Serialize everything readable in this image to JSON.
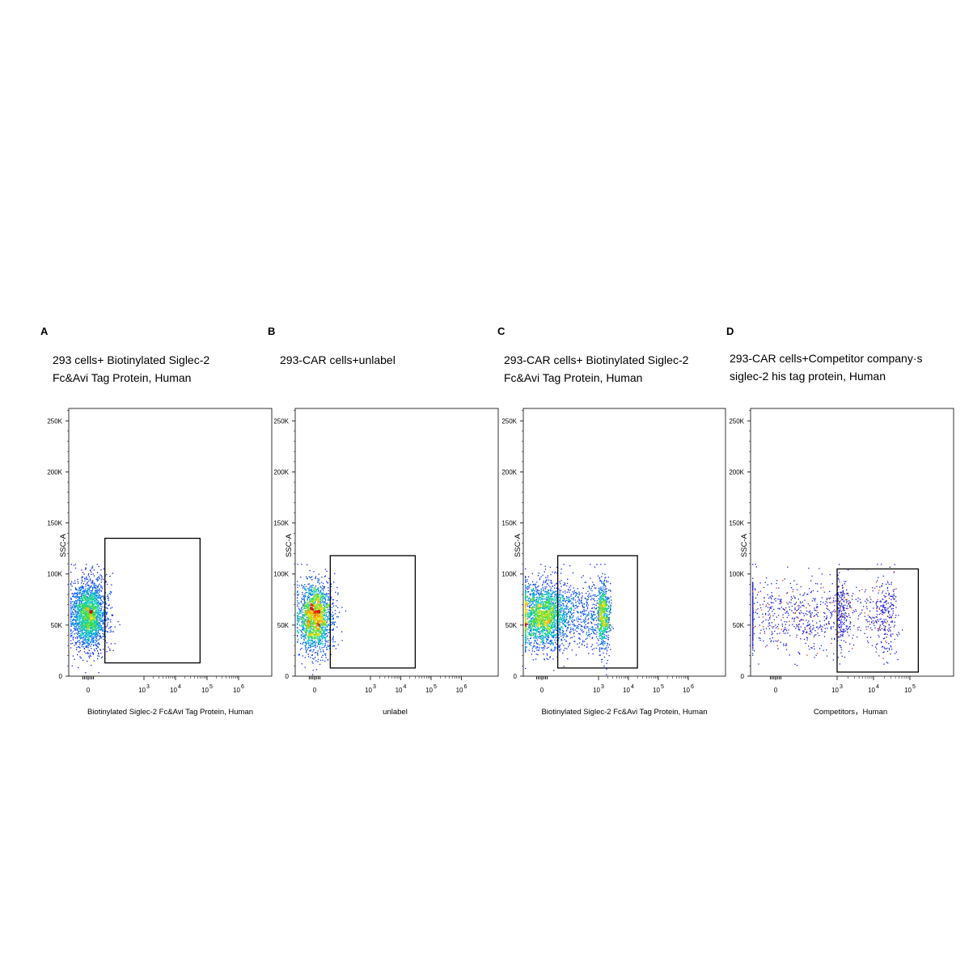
{
  "chart_data": [
    {
      "type": "scatter",
      "panel": "A",
      "title_lines": [
        "293 cells+ Biotinylated Siglec-2",
        "Fc&Avi Tag Protein, Human"
      ],
      "xlabel": "Biotinylated Siglec-2 Fc&Avi Tag Protein, Human",
      "ylabel": "SSC-A",
      "xticks": [
        {
          "label": "0",
          "exp": ""
        },
        {
          "label": "10",
          "exp": "3"
        },
        {
          "label": "10",
          "exp": "4"
        },
        {
          "label": "10",
          "exp": "5"
        },
        {
          "label": "10",
          "exp": "6"
        }
      ],
      "yticks": [
        "0",
        "50K",
        "100K",
        "150K",
        "200K",
        "250K"
      ],
      "ylim": [
        0,
        262144
      ],
      "x_scale": "biexponential",
      "gate": {
        "x": [
          300,
          60000
        ],
        "y": [
          13000,
          135000
        ]
      },
      "populations": [
        {
          "x_center": 0,
          "x_spread": 160,
          "y_center": 60000,
          "y_spread": 17000,
          "count": 2200
        }
      ]
    },
    {
      "type": "scatter",
      "panel": "B",
      "title_lines": [
        "293-CAR cells+unlabel"
      ],
      "xlabel": "unlabel",
      "ylabel": "SSC-A",
      "xticks": [
        {
          "label": "0",
          "exp": ""
        },
        {
          "label": "10",
          "exp": "3"
        },
        {
          "label": "10",
          "exp": "4"
        },
        {
          "label": "10",
          "exp": "5"
        },
        {
          "label": "10",
          "exp": "6"
        }
      ],
      "yticks": [
        "0",
        "50K",
        "100K",
        "150K",
        "200K",
        "250K"
      ],
      "ylim": [
        0,
        262144
      ],
      "x_scale": "biexponential",
      "gate": {
        "x": [
          280,
          30000
        ],
        "y": [
          8000,
          118000
        ]
      },
      "populations": [
        {
          "x_center": 0,
          "x_spread": 150,
          "y_center": 58000,
          "y_spread": 17000,
          "count": 1900
        }
      ]
    },
    {
      "type": "scatter",
      "panel": "C",
      "title_lines": [
        "293-CAR cells+ Biotinylated Siglec-2",
        "Fc&Avi Tag Protein, Human"
      ],
      "xlabel": "Biotinylated Siglec-2 Fc&Avi Tag Protein, Human",
      "ylabel": "SSC-A",
      "xticks": [
        {
          "label": "0",
          "exp": ""
        },
        {
          "label": "10",
          "exp": "3"
        },
        {
          "label": "10",
          "exp": "4"
        },
        {
          "label": "10",
          "exp": "5"
        },
        {
          "label": "10",
          "exp": "6"
        }
      ],
      "yticks": [
        "0",
        "50K",
        "100K",
        "150K",
        "200K",
        "250K"
      ],
      "ylim": [
        0,
        262144
      ],
      "x_scale": "biexponential",
      "gate": {
        "x": [
          280,
          20000
        ],
        "y": [
          8000,
          118000
        ]
      },
      "populations": [
        {
          "x_center": 0,
          "x_spread": 220,
          "y_center": 60000,
          "y_spread": 16000,
          "count": 2000
        },
        {
          "x_center": 1000,
          "x_spread": 600,
          "y_center": 60000,
          "y_spread": 17000,
          "count": 1300
        }
      ]
    },
    {
      "type": "scatter",
      "panel": "D",
      "title_lines": [
        "293-CAR cells+Competitor company·s",
        "siglec-2 his tag protein, Human"
      ],
      "xlabel": "Competitors，Human",
      "ylabel": "SSC-A",
      "xticks": [
        {
          "label": "0",
          "exp": ""
        },
        {
          "label": "10",
          "exp": "3"
        },
        {
          "label": "10",
          "exp": "4"
        },
        {
          "label": "10",
          "exp": "5"
        }
      ],
      "yticks": [
        "0",
        "50K",
        "100K",
        "150K",
        "200K",
        "250K"
      ],
      "ylim": [
        0,
        262144
      ],
      "x_scale": "biexponential",
      "gate": {
        "x": [
          1000,
          170000
        ],
        "y": [
          4000,
          105000
        ]
      },
      "populations": [
        {
          "x_center": 400,
          "x_spread": 900,
          "y_center": 60000,
          "y_spread": 18000,
          "count": 900
        },
        {
          "x_center": 15000,
          "x_spread": 14000,
          "y_center": 60000,
          "y_spread": 20000,
          "count": 420
        }
      ]
    }
  ]
}
